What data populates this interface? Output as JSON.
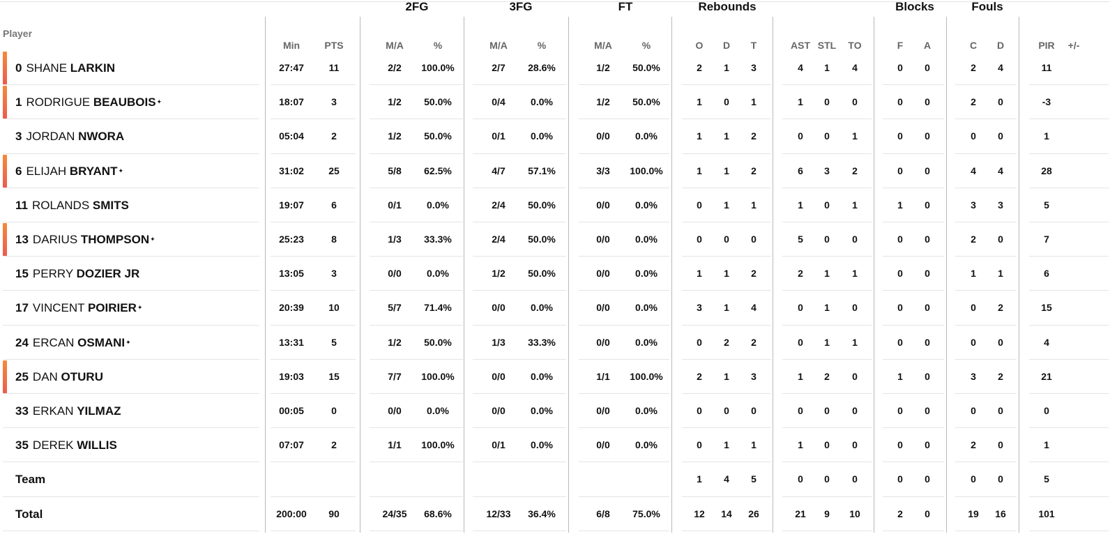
{
  "headers": {
    "player": "Player",
    "groups": [
      "2FG",
      "3FG",
      "FT",
      "Rebounds",
      "Blocks",
      "Fouls"
    ],
    "columns": [
      "Min",
      "PTS",
      "M/A",
      "%",
      "M/A",
      "%",
      "M/A",
      "%",
      "O",
      "D",
      "T",
      "AST",
      "STL",
      "TO",
      "F",
      "A",
      "C",
      "D",
      "PIR",
      "+/-"
    ]
  },
  "players": [
    {
      "num": "0",
      "first": "SHANE",
      "last": "LARKIN",
      "star": "",
      "starter": true,
      "stats": [
        "27:47",
        "11",
        "2/2",
        "100.0%",
        "2/7",
        "28.6%",
        "1/2",
        "50.0%",
        "2",
        "1",
        "3",
        "4",
        "1",
        "4",
        "0",
        "0",
        "2",
        "4",
        "11",
        ""
      ]
    },
    {
      "num": "1",
      "first": "RODRIGUE",
      "last": "BEAUBOIS",
      "star": "*",
      "starter": true,
      "stats": [
        "18:07",
        "3",
        "1/2",
        "50.0%",
        "0/4",
        "0.0%",
        "1/2",
        "50.0%",
        "1",
        "0",
        "1",
        "1",
        "0",
        "0",
        "0",
        "0",
        "2",
        "0",
        "-3",
        ""
      ]
    },
    {
      "num": "3",
      "first": "JORDAN",
      "last": "NWORA",
      "star": "",
      "starter": false,
      "stats": [
        "05:04",
        "2",
        "1/2",
        "50.0%",
        "0/1",
        "0.0%",
        "0/0",
        "0.0%",
        "1",
        "1",
        "2",
        "0",
        "0",
        "1",
        "0",
        "0",
        "0",
        "0",
        "1",
        ""
      ]
    },
    {
      "num": "6",
      "first": "ELIJAH",
      "last": "BRYANT",
      "star": "*",
      "starter": true,
      "stats": [
        "31:02",
        "25",
        "5/8",
        "62.5%",
        "4/7",
        "57.1%",
        "3/3",
        "100.0%",
        "1",
        "1",
        "2",
        "6",
        "3",
        "2",
        "0",
        "0",
        "4",
        "4",
        "28",
        ""
      ]
    },
    {
      "num": "11",
      "first": "ROLANDS",
      "last": "SMITS",
      "star": "",
      "starter": false,
      "stats": [
        "19:07",
        "6",
        "0/1",
        "0.0%",
        "2/4",
        "50.0%",
        "0/0",
        "0.0%",
        "0",
        "1",
        "1",
        "1",
        "0",
        "1",
        "1",
        "0",
        "3",
        "3",
        "5",
        ""
      ]
    },
    {
      "num": "13",
      "first": "DARIUS",
      "last": "THOMPSON",
      "star": "*",
      "starter": true,
      "stats": [
        "25:23",
        "8",
        "1/3",
        "33.3%",
        "2/4",
        "50.0%",
        "0/0",
        "0.0%",
        "0",
        "0",
        "0",
        "5",
        "0",
        "0",
        "0",
        "0",
        "2",
        "0",
        "7",
        ""
      ]
    },
    {
      "num": "15",
      "first": "PERRY",
      "last": "DOZIER JR",
      "star": "",
      "starter": false,
      "stats": [
        "13:05",
        "3",
        "0/0",
        "0.0%",
        "1/2",
        "50.0%",
        "0/0",
        "0.0%",
        "1",
        "1",
        "2",
        "2",
        "1",
        "1",
        "0",
        "0",
        "1",
        "1",
        "6",
        ""
      ]
    },
    {
      "num": "17",
      "first": "VINCENT",
      "last": "POIRIER",
      "star": "*",
      "starter": false,
      "stats": [
        "20:39",
        "10",
        "5/7",
        "71.4%",
        "0/0",
        "0.0%",
        "0/0",
        "0.0%",
        "3",
        "1",
        "4",
        "0",
        "1",
        "0",
        "0",
        "0",
        "0",
        "2",
        "15",
        ""
      ]
    },
    {
      "num": "24",
      "first": "ERCAN",
      "last": "OSMANI",
      "star": "*",
      "starter": false,
      "stats": [
        "13:31",
        "5",
        "1/2",
        "50.0%",
        "1/3",
        "33.3%",
        "0/0",
        "0.0%",
        "0",
        "2",
        "2",
        "0",
        "1",
        "1",
        "0",
        "0",
        "0",
        "0",
        "4",
        ""
      ]
    },
    {
      "num": "25",
      "first": "DAN",
      "last": "OTURU",
      "star": "",
      "starter": true,
      "stats": [
        "19:03",
        "15",
        "7/7",
        "100.0%",
        "0/0",
        "0.0%",
        "1/1",
        "100.0%",
        "2",
        "1",
        "3",
        "1",
        "2",
        "0",
        "1",
        "0",
        "3",
        "2",
        "21",
        ""
      ]
    },
    {
      "num": "33",
      "first": "ERKAN",
      "last": "YILMAZ",
      "star": "",
      "starter": false,
      "stats": [
        "00:05",
        "0",
        "0/0",
        "0.0%",
        "0/0",
        "0.0%",
        "0/0",
        "0.0%",
        "0",
        "0",
        "0",
        "0",
        "0",
        "0",
        "0",
        "0",
        "0",
        "0",
        "0",
        ""
      ]
    },
    {
      "num": "35",
      "first": "DEREK",
      "last": "WILLIS",
      "star": "",
      "starter": false,
      "stats": [
        "07:07",
        "2",
        "1/1",
        "100.0%",
        "0/1",
        "0.0%",
        "0/0",
        "0.0%",
        "0",
        "1",
        "1",
        "1",
        "0",
        "0",
        "0",
        "0",
        "2",
        "0",
        "1",
        ""
      ]
    }
  ],
  "team": {
    "label": "Team",
    "stats": [
      "",
      "",
      "",
      "",
      "",
      "",
      "",
      "",
      "1",
      "4",
      "5",
      "0",
      "0",
      "0",
      "0",
      "0",
      "0",
      "0",
      "5",
      ""
    ]
  },
  "total": {
    "label": "Total",
    "stats": [
      "200:00",
      "90",
      "24/35",
      "68.6%",
      "12/33",
      "36.4%",
      "6/8",
      "75.0%",
      "12",
      "14",
      "26",
      "21",
      "9",
      "10",
      "2",
      "0",
      "19",
      "16",
      "101",
      ""
    ]
  },
  "colors": {
    "starter_marker_top": "#f58a3c",
    "starter_marker_bottom": "#ee5a4c",
    "divider": "#b8b8b8",
    "row_line": "#e4e4e4",
    "header_text": "#666666"
  }
}
